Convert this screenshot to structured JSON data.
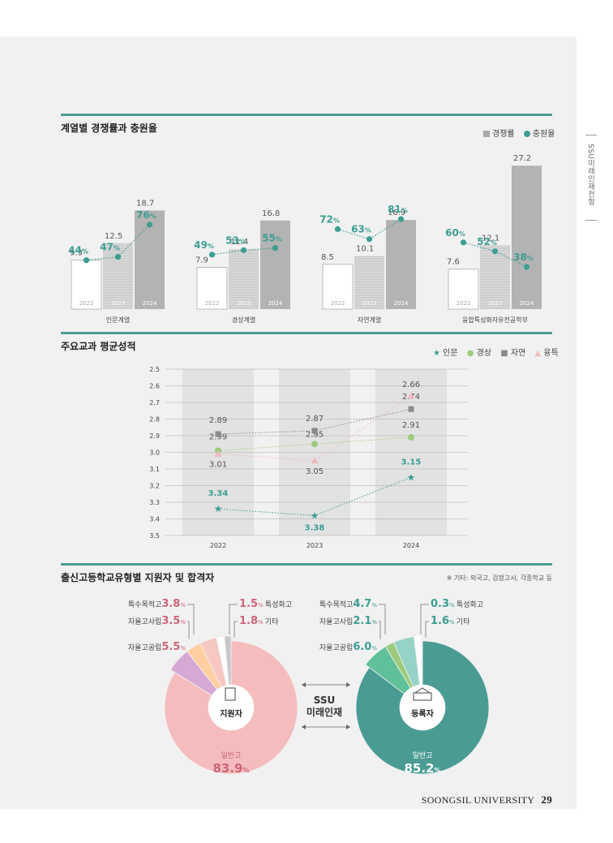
{
  "side_tab": "SSU미래인재전형",
  "footer": {
    "university": "SOONGSIL UNIVERSITY",
    "page": "29"
  },
  "section1": {
    "title": "계열별 경쟁률과 충원율",
    "legend": {
      "bar": "경쟁률",
      "dot": "충원율"
    }
  },
  "section2": {
    "title": "주요교과 평균성적",
    "legend": {
      "s1": "인문",
      "s2": "경상",
      "s3": "자연",
      "s4": "융특"
    }
  },
  "section3": {
    "title": "출신고등학교유형별 지원자 및 합격자",
    "note": "※ 기타: 외국고, 검정고시, 각종학교 등",
    "center_label": [
      "SSU",
      "미래인재"
    ]
  },
  "colors": {
    "teal": "#3d9e92",
    "pink": "#cc6679",
    "grey": "#9a9a9a",
    "green": "#9dcb7d",
    "pink_marker": "#f4b8bf"
  },
  "chart_data": [
    {
      "type": "bar",
      "title": "계열별 경쟁률과 충원율",
      "years": [
        "2022",
        "2023",
        "2024"
      ],
      "groups": [
        {
          "name": "인문계열",
          "competition": [
            9.3,
            12.5,
            18.7
          ],
          "fill_rate": [
            44,
            47,
            76
          ]
        },
        {
          "name": "경상계열",
          "competition": [
            7.9,
            11.4,
            16.8
          ],
          "fill_rate": [
            49,
            53,
            55
          ]
        },
        {
          "name": "자연계열",
          "competition": [
            8.5,
            10.1,
            16.9
          ],
          "fill_rate": [
            72,
            63,
            81
          ]
        },
        {
          "name": "융합특성화자유전공학부",
          "competition": [
            7.6,
            12.1,
            27.2
          ],
          "fill_rate": [
            60,
            52,
            38
          ]
        }
      ],
      "competition_labels": [
        [
          "9.3",
          "12.5",
          "18.7"
        ],
        [
          "7.9",
          "11.4",
          "16.8"
        ],
        [
          "8.5",
          "10.1",
          "16.9"
        ],
        [
          "7.6",
          "12.1",
          "27.2"
        ]
      ],
      "fill_labels": [
        [
          "44",
          "47",
          "76"
        ],
        [
          "49",
          "53",
          "55"
        ],
        [
          "72",
          "63",
          "81"
        ],
        [
          "60",
          "52",
          "38"
        ]
      ],
      "percent_sign": "%",
      "legend": [
        "경쟁률",
        "충원율"
      ]
    },
    {
      "type": "line",
      "title": "주요교과 평균성적",
      "x": [
        "2022",
        "2023",
        "2024"
      ],
      "ylim": [
        2.5,
        3.5
      ],
      "y_inverted": true,
      "yticks": [
        "2.5",
        "2.6",
        "2.7",
        "2.8",
        "2.9",
        "3.0",
        "3.1",
        "3.2",
        "3.3",
        "3.4",
        "3.5"
      ],
      "series": [
        {
          "name": "인문",
          "marker": "star",
          "values": [
            3.34,
            3.38,
            3.15
          ],
          "labels": [
            "3.34",
            "3.38",
            "3.15"
          ]
        },
        {
          "name": "경상",
          "marker": "circle",
          "values": [
            2.99,
            2.95,
            2.91
          ],
          "labels": [
            "2.99",
            "2.95",
            "2.91"
          ]
        },
        {
          "name": "자연",
          "marker": "square",
          "values": [
            2.89,
            2.87,
            2.74
          ],
          "labels": [
            "2.89",
            "2.87",
            "2.74"
          ]
        },
        {
          "name": "융특",
          "marker": "triangle",
          "values": [
            3.01,
            3.05,
            2.66
          ],
          "labels": [
            "3.01",
            "3.05",
            "2.66"
          ]
        }
      ]
    },
    {
      "type": "pie",
      "title": "지원자",
      "center_label": "지원자",
      "unit": "%",
      "slices": [
        {
          "name": "일반고",
          "value": 83.9,
          "label": "83.9"
        },
        {
          "name": "자율고공립",
          "value": 5.5,
          "label": "5.5"
        },
        {
          "name": "자율고사립",
          "value": 3.5,
          "label": "3.5"
        },
        {
          "name": "특수목적고",
          "value": 3.8,
          "label": "3.8"
        },
        {
          "name": "기타",
          "value": 1.8,
          "label": "1.8"
        },
        {
          "name": "특성화고",
          "value": 1.5,
          "label": "1.5"
        }
      ]
    },
    {
      "type": "pie",
      "title": "등록자",
      "center_label": "등록자",
      "unit": "%",
      "slices": [
        {
          "name": "일반고",
          "value": 85.2,
          "label": "85.2"
        },
        {
          "name": "자율고공립",
          "value": 6.0,
          "label": "6.0"
        },
        {
          "name": "자율고사립",
          "value": 2.1,
          "label": "2.1"
        },
        {
          "name": "특수목적고",
          "value": 4.7,
          "label": "4.7"
        },
        {
          "name": "기타",
          "value": 1.6,
          "label": "1.6"
        },
        {
          "name": "특성화고",
          "value": 0.3,
          "label": "0.3"
        }
      ]
    }
  ]
}
